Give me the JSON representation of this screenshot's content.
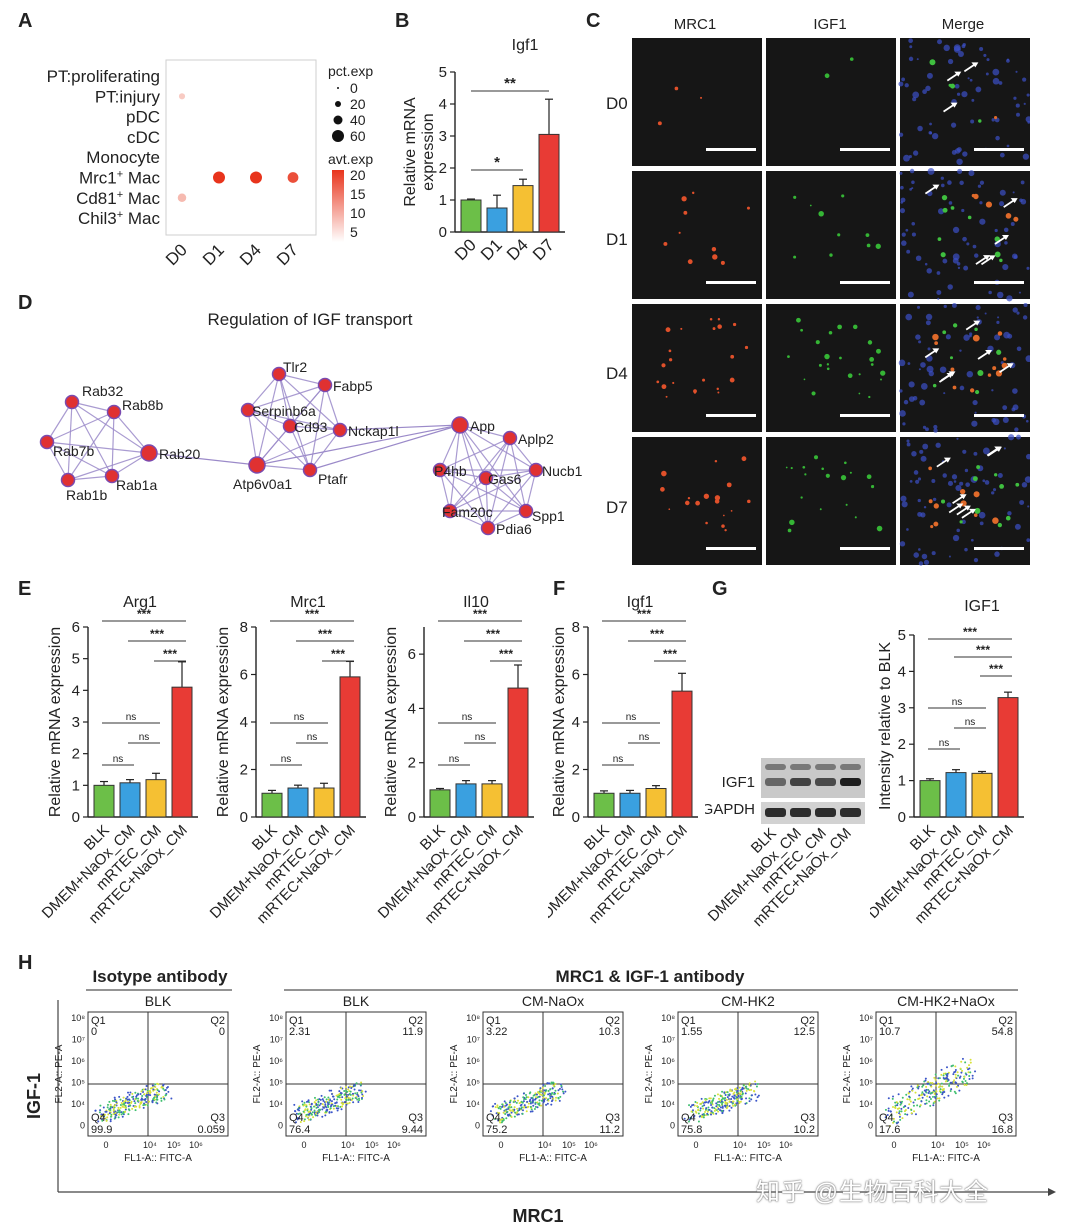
{
  "panel_labels": [
    "A",
    "B",
    "C",
    "D",
    "E",
    "F",
    "G",
    "H"
  ],
  "panelA": {
    "rows": [
      "PT:proliferating",
      "PT:injury",
      "pDC",
      "cDC",
      "Monocyte",
      "Mrc1+ Mac",
      "Cd81+ Mac",
      "Chil3+ Mac"
    ],
    "row_main": [
      "PT:proliferating",
      "PT:injury",
      "pDC",
      "cDC",
      "Monocyte",
      "Mrc1",
      "Cd81",
      "Chil3"
    ],
    "row_sup": [
      "",
      "",
      "",
      "",
      "",
      "+",
      "+",
      "+"
    ],
    "row_suffix": [
      "",
      "",
      "",
      "",
      "",
      " Mac",
      " Mac",
      " Mac"
    ],
    "cols": [
      "D0",
      "D1",
      "D4",
      "D7"
    ],
    "pct_title": "pct.exp",
    "pct_labels": [
      "0",
      "20",
      "40",
      "60"
    ],
    "avt_title": "avt.exp",
    "avt_labels": [
      "20",
      "15",
      "10",
      "5"
    ],
    "dots": [
      {
        "row": "PT:injury",
        "col": "D0",
        "pct": 5,
        "avt": 3
      },
      {
        "row": "Mrc1+ Mac",
        "col": "D1",
        "pct": 40,
        "avt": 20
      },
      {
        "row": "Mrc1+ Mac",
        "col": "D4",
        "pct": 40,
        "avt": 20
      },
      {
        "row": "Mrc1+ Mac",
        "col": "D7",
        "pct": 30,
        "avt": 17
      },
      {
        "row": "Cd81+ Mac",
        "col": "D0",
        "pct": 15,
        "avt": 5
      }
    ],
    "colors": {
      "high": "#e8341c",
      "low": "#fbe6e1"
    }
  },
  "panelB": {
    "title": "Igf1",
    "ylabel_lines": [
      "Relative mRNA",
      "expression"
    ],
    "chart_data": {
      "type": "bar",
      "categories": [
        "D0",
        "D1",
        "D4",
        "D7"
      ],
      "values": [
        1.0,
        0.75,
        1.45,
        3.05
      ],
      "errors": [
        0.03,
        0.4,
        0.2,
        1.1
      ],
      "ylim": [
        0,
        5
      ],
      "yticks": [
        "0",
        "1",
        "2",
        "3",
        "4",
        "5"
      ],
      "colors": [
        "#6cbf48",
        "#3aa0e0",
        "#f5c033",
        "#e83b35"
      ],
      "significance": [
        {
          "from": "D0",
          "to": "D4",
          "label": "*"
        },
        {
          "from": "D0",
          "to": "D7",
          "label": "**"
        }
      ]
    }
  },
  "panelC": {
    "headers": [
      "MRC1",
      "IGF1",
      "Merge"
    ],
    "header_colors": [
      "#e03a2e",
      "#2fa52f",
      "#222222"
    ],
    "rows": [
      "D0",
      "D1",
      "D4",
      "D7"
    ]
  },
  "panelD": {
    "title": "Regulation of IGF transport",
    "nodes": [
      "Rab32",
      "Rab8b",
      "Rab7b",
      "Rab20",
      "Rab1b",
      "Rab1a",
      "Tlr2",
      "Fabp5",
      "Serpinb6a",
      "Cd93",
      "Nckap1l",
      "Atp6v0a1",
      "Ptafr",
      "App",
      "Aplp2",
      "P4hb",
      "Gas6",
      "Nucb1",
      "Fam20c",
      "Spp1",
      "Pdia6"
    ],
    "colors": {
      "node": "#e03131",
      "edge": "#9b8ac9"
    }
  },
  "panelE": [
    {
      "title": "Arg1",
      "ylabel": "Relative mRNA expression",
      "chart_data": {
        "type": "bar",
        "categories": [
          "BLK",
          "DMEM+NaOx_CM",
          "mRTEC_CM",
          "mRTEC+NaOx_CM"
        ],
        "values": [
          1.0,
          1.08,
          1.18,
          4.1
        ],
        "errors": [
          0.12,
          0.1,
          0.2,
          0.8
        ],
        "ylim": [
          0,
          6
        ],
        "yticks": [
          "0",
          "1",
          "2",
          "3",
          "4",
          "5",
          "6"
        ],
        "significance": [
          [
            "BLK",
            "DMEM+NaOx_CM",
            "ns"
          ],
          [
            "DMEM+NaOx_CM",
            "mRTEC_CM",
            "ns"
          ],
          [
            "BLK",
            "mRTEC_CM",
            "ns"
          ],
          [
            "mRTEC_CM",
            "mRTEC+NaOx_CM",
            "***"
          ],
          [
            "DMEM+NaOx_CM",
            "mRTEC+NaOx_CM",
            "***"
          ],
          [
            "BLK",
            "mRTEC+NaOx_CM",
            "***"
          ]
        ]
      }
    },
    {
      "title": "Mrc1",
      "ylabel": "Relative mRNA expression",
      "chart_data": {
        "type": "bar",
        "categories": [
          "BLK",
          "DMEM+NaOx_CM",
          "mRTEC_CM",
          "mRTEC+NaOx_CM"
        ],
        "values": [
          1.0,
          1.22,
          1.22,
          5.9
        ],
        "errors": [
          0.12,
          0.12,
          0.2,
          0.65
        ],
        "ylim": [
          0,
          8
        ],
        "yticks": [
          "0",
          "2",
          "4",
          "6",
          "8"
        ],
        "significance": [
          [
            "BLK",
            "DMEM+NaOx_CM",
            "ns"
          ],
          [
            "DMEM+NaOx_CM",
            "mRTEC_CM",
            "ns"
          ],
          [
            "BLK",
            "mRTEC_CM",
            "ns"
          ],
          [
            "mRTEC_CM",
            "mRTEC+NaOx_CM",
            "***"
          ],
          [
            "DMEM+NaOx_CM",
            "mRTEC+NaOx_CM",
            "***"
          ],
          [
            "BLK",
            "mRTEC+NaOx_CM",
            "***"
          ]
        ]
      }
    },
    {
      "title": "Il10",
      "ylabel": "Relative mRNA expression",
      "chart_data": {
        "type": "bar",
        "categories": [
          "BLK",
          "DMEM+NaOx_CM",
          "mRTEC_CM",
          "mRTEC+NaOx_CM"
        ],
        "values": [
          1.0,
          1.22,
          1.22,
          4.75
        ],
        "errors": [
          0.05,
          0.12,
          0.12,
          0.85
        ],
        "ylim": [
          0,
          7
        ],
        "yticks": [
          "0",
          "2",
          "4",
          "6"
        ],
        "significance": [
          [
            "BLK",
            "DMEM+NaOx_CM",
            "ns"
          ],
          [
            "DMEM+NaOx_CM",
            "mRTEC_CM",
            "ns"
          ],
          [
            "BLK",
            "mRTEC_CM",
            "ns"
          ],
          [
            "mRTEC_CM",
            "mRTEC+NaOx_CM",
            "***"
          ],
          [
            "DMEM+NaOx_CM",
            "mRTEC+NaOx_CM",
            "***"
          ],
          [
            "BLK",
            "mRTEC+NaOx_CM",
            "***"
          ]
        ]
      }
    }
  ],
  "panelF": {
    "title": "Igf1",
    "ylabel": "Relative mRNA expression",
    "chart_data": {
      "type": "bar",
      "categories": [
        "BLK",
        "DMEM+NaOx_CM",
        "mRTEC_CM",
        "mRTEC+NaOx_CM"
      ],
      "values": [
        1.0,
        1.0,
        1.2,
        5.3
      ],
      "errors": [
        0.1,
        0.12,
        0.12,
        0.75
      ],
      "ylim": [
        0,
        8
      ],
      "yticks": [
        "0",
        "2",
        "4",
        "6",
        "8"
      ],
      "significance": [
        [
          "BLK",
          "DMEM+NaOx_CM",
          "ns"
        ],
        [
          "DMEM+NaOx_CM",
          "mRTEC_CM",
          "ns"
        ],
        [
          "BLK",
          "mRTEC_CM",
          "ns"
        ],
        [
          "mRTEC_CM",
          "mRTEC+NaOx_CM",
          "***"
        ],
        [
          "DMEM+NaOx_CM",
          "mRTEC+NaOx_CM",
          "***"
        ],
        [
          "BLK",
          "mRTEC+NaOx_CM",
          "***"
        ]
      ]
    }
  },
  "panelG": {
    "blot_labels": [
      "IGF1",
      "GAPDH"
    ],
    "blot_lanes": [
      "BLK",
      "DMEM+NaOx_CM",
      "mRTEC_CM",
      "mRTEC+NaOx_CM"
    ],
    "title": "IGF1",
    "ylabel": "Intensity relative to BLK",
    "chart_data": {
      "type": "bar",
      "categories": [
        "BLK",
        "DMEM+NaOx_CM",
        "mRTEC_CM",
        "mRTEC+NaOx_CM"
      ],
      "values": [
        1.0,
        1.22,
        1.2,
        3.28
      ],
      "errors": [
        0.05,
        0.08,
        0.05,
        0.15
      ],
      "ylim": [
        0,
        5
      ],
      "yticks": [
        "0",
        "1",
        "2",
        "3",
        "4",
        "5"
      ],
      "significance": [
        [
          "BLK",
          "DMEM+NaOx_CM",
          "ns"
        ],
        [
          "DMEM+NaOx_CM",
          "mRTEC_CM",
          "ns"
        ],
        [
          "BLK",
          "mRTEC_CM",
          "ns"
        ],
        [
          "mRTEC_CM",
          "mRTEC+NaOx_CM",
          "***"
        ],
        [
          "DMEM+NaOx_CM",
          "mRTEC+NaOx_CM",
          "***"
        ],
        [
          "BLK",
          "mRTEC+NaOx_CM",
          "***"
        ]
      ]
    }
  },
  "bar_colors": [
    "#6cbf48",
    "#3aa0e0",
    "#f5c033",
    "#e83b35"
  ],
  "panelH": {
    "group1": "Isotype antibody",
    "group2": "MRC1 & IGF-1 antibody",
    "yaxis": "IGF-1",
    "xaxis": "MRC1",
    "y_param": "FL2-A:: PE-A",
    "x_param": "FL1-A:: FITC-A",
    "yticks": [
      "10⁸",
      "10⁷",
      "10⁶",
      "10⁵",
      "10⁴",
      "0"
    ],
    "xticks": [
      "0",
      "10⁴",
      "10⁵",
      "10⁶"
    ],
    "quadrant_names": [
      "Q1",
      "Q2",
      "Q3",
      "Q4"
    ],
    "plots": [
      {
        "title": "BLK",
        "q1": "0",
        "q2": "0",
        "q3": "0.059",
        "q4": "99.9"
      },
      {
        "title": "BLK",
        "q1": "2.31",
        "q2": "11.9",
        "q3": "9.44",
        "q4": "76.4"
      },
      {
        "title": "CM-NaOx",
        "q1": "3.22",
        "q2": "10.3",
        "q3": "11.2",
        "q4": "75.2"
      },
      {
        "title": "CM-HK2",
        "q1": "1.55",
        "q2": "12.5",
        "q3": "10.2",
        "q4": "75.8"
      },
      {
        "title": "CM-HK2+NaOx",
        "q1": "10.7",
        "q2": "54.8",
        "q3": "16.8",
        "q4": "17.6"
      }
    ]
  },
  "watermark": "知乎 @生物百科大全"
}
